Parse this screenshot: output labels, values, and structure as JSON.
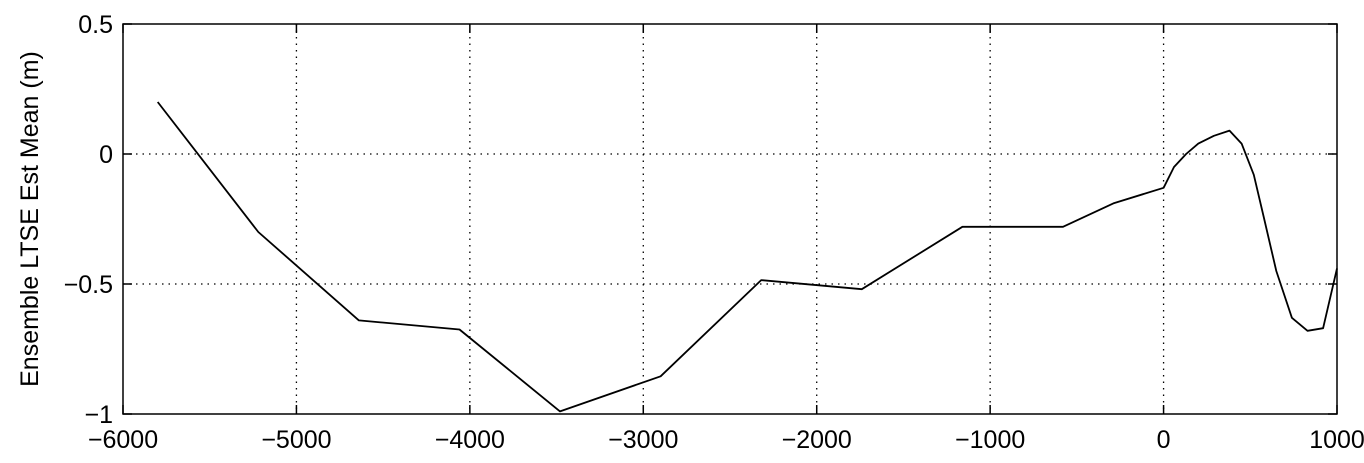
{
  "chart_data": {
    "type": "line",
    "title": "",
    "xlabel": "",
    "ylabel": "Ensemble LTSE Est Mean (m)",
    "xlim": [
      -6000,
      1000
    ],
    "ylim": [
      -1,
      0.5
    ],
    "xticks": [
      -6000,
      -5000,
      -4000,
      -3000,
      -2000,
      -1000,
      0,
      1000
    ],
    "xtick_labels": [
      "−6000",
      "−5000",
      "−4000",
      "−3000",
      "−2000",
      "−1000",
      "0",
      "1000"
    ],
    "yticks": [
      -1,
      -0.5,
      0,
      0.5
    ],
    "ytick_labels": [
      "−1",
      "−0.5",
      "0",
      "0.5"
    ],
    "grid": true,
    "legend": "none",
    "line_color": "#000000",
    "series": [
      {
        "x": [
          -5800,
          -5220,
          -4640,
          -4060,
          -3480,
          -2900,
          -2320,
          -1740,
          -1160,
          -580,
          -290,
          0,
          60,
          130,
          200,
          290,
          380,
          450,
          520,
          580,
          650,
          740,
          830,
          920,
          1000
        ],
        "y": [
          0.2,
          -0.3,
          -0.64,
          -0.675,
          -0.99,
          -0.855,
          -0.485,
          -0.52,
          -0.28,
          -0.28,
          -0.19,
          -0.13,
          -0.05,
          0.0,
          0.04,
          0.07,
          0.09,
          0.04,
          -0.08,
          -0.25,
          -0.45,
          -0.63,
          -0.68,
          -0.67,
          -0.44
        ]
      }
    ]
  }
}
